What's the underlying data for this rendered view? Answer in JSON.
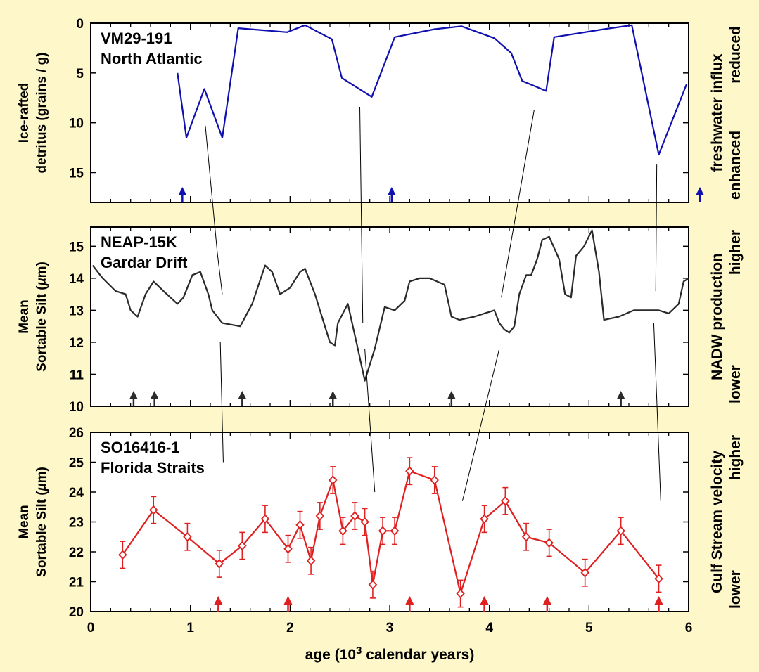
{
  "chart_data": [
    {
      "type": "line",
      "panel": "top",
      "title_lines": [
        "VM29-191",
        "North Atlantic"
      ],
      "ylabel_lines": [
        "Ice-rafted",
        "detritus (grains / g)"
      ],
      "right_label_lines": [
        "freshwater influx",
        "enhanced",
        "reduced"
      ],
      "ylim": [
        18,
        0
      ],
      "y_ticks": [
        0,
        5,
        10,
        15
      ],
      "y_tick_labels": [
        "0",
        "5",
        "10",
        "15"
      ],
      "color": "#1010B0",
      "x": [
        0.87,
        0.96,
        1.14,
        1.32,
        1.48,
        1.97,
        2.15,
        2.42,
        2.52,
        2.82,
        3.05,
        3.45,
        3.72,
        4.05,
        4.22,
        4.33,
        4.57,
        4.65,
        5.15,
        5.43,
        5.7,
        5.98
      ],
      "y": [
        5.0,
        11.5,
        6.6,
        11.5,
        0.5,
        0.9,
        0.2,
        1.6,
        5.5,
        7.4,
        1.4,
        0.6,
        0.3,
        1.5,
        3.0,
        5.8,
        6.8,
        1.4,
        0.6,
        0.2,
        13.2,
        6.1
      ],
      "markers_x": [
        0.92,
        3.02,
        6.1
      ]
    },
    {
      "type": "line",
      "panel": "middle",
      "title_lines": [
        "NEAP-15K",
        "Gardar Drift"
      ],
      "ylabel_lines": [
        "Mean",
        "Sortable Silt (µm)"
      ],
      "right_label_lines": [
        "NADW production",
        "lower",
        "higher"
      ],
      "ylim": [
        10,
        15.6
      ],
      "y_ticks": [
        10,
        11,
        12,
        13,
        14,
        15
      ],
      "y_tick_labels": [
        "10",
        "11",
        "12",
        "13",
        "14",
        "15"
      ],
      "color": "#2A2A2A",
      "x": [
        0.02,
        0.12,
        0.25,
        0.35,
        0.4,
        0.47,
        0.55,
        0.63,
        0.73,
        0.8,
        0.87,
        0.93,
        1.02,
        1.1,
        1.18,
        1.22,
        1.32,
        1.5,
        1.62,
        1.75,
        1.82,
        1.9,
        2.0,
        2.1,
        2.15,
        2.25,
        2.35,
        2.4,
        2.45,
        2.48,
        2.53,
        2.58,
        2.68,
        2.75,
        2.85,
        2.95,
        3.05,
        3.15,
        3.2,
        3.3,
        3.4,
        3.55,
        3.62,
        3.7,
        3.85,
        3.95,
        4.05,
        4.1,
        4.15,
        4.2,
        4.25,
        4.3,
        4.37,
        4.42,
        4.48,
        4.53,
        4.6,
        4.7,
        4.76,
        4.82,
        4.87,
        4.95,
        5.03,
        5.1,
        5.15,
        5.3,
        5.45,
        5.55,
        5.7,
        5.8,
        5.9,
        5.95,
        6.0
      ],
      "y": [
        14.4,
        14.0,
        13.6,
        13.5,
        13.0,
        12.8,
        13.5,
        13.9,
        13.6,
        13.4,
        13.2,
        13.4,
        14.1,
        14.2,
        13.5,
        13.0,
        12.6,
        12.5,
        13.2,
        14.4,
        14.2,
        13.5,
        13.7,
        14.2,
        14.3,
        13.5,
        12.5,
        12.0,
        11.9,
        12.6,
        12.9,
        13.2,
        11.8,
        10.8,
        11.8,
        13.1,
        13.0,
        13.3,
        13.9,
        14.0,
        14.0,
        13.8,
        12.8,
        12.7,
        12.8,
        12.9,
        13.0,
        12.6,
        12.4,
        12.3,
        12.5,
        13.5,
        14.1,
        14.1,
        14.6,
        15.2,
        15.3,
        14.6,
        13.5,
        13.4,
        14.7,
        15.0,
        15.5,
        14.2,
        12.7,
        12.8,
        13.0,
        13.0,
        13.0,
        12.9,
        13.2,
        13.9,
        14.0
      ],
      "markers_x": [
        0.43,
        0.64,
        1.52,
        2.43,
        3.62,
        5.32
      ]
    },
    {
      "type": "line",
      "panel": "bottom",
      "title_lines": [
        "SO16416-1",
        "Florida Straits"
      ],
      "ylabel_lines": [
        "Mean",
        "Sortable Silt (µm)"
      ],
      "right_label_lines": [
        "Gulf Stream velocity",
        "lower",
        "higher"
      ],
      "ylim": [
        20,
        26
      ],
      "y_ticks": [
        20,
        21,
        22,
        23,
        24,
        25,
        26
      ],
      "y_tick_labels": [
        "20",
        "21",
        "22",
        "23",
        "24",
        "25",
        "26"
      ],
      "color": "#E02020",
      "x": [
        0.32,
        0.63,
        0.97,
        1.29,
        1.52,
        1.75,
        1.98,
        2.1,
        2.21,
        2.3,
        2.43,
        2.53,
        2.65,
        2.75,
        2.83,
        2.93,
        3.05,
        3.2,
        3.45,
        3.71,
        3.95,
        4.16,
        4.37,
        4.6,
        4.96,
        5.32,
        5.7
      ],
      "y": [
        21.9,
        23.4,
        22.5,
        21.6,
        22.2,
        23.1,
        22.1,
        22.9,
        21.7,
        23.2,
        24.4,
        22.7,
        23.2,
        23.0,
        20.9,
        22.7,
        22.7,
        24.7,
        24.4,
        20.6,
        23.1,
        23.7,
        22.5,
        22.3,
        21.3,
        22.7,
        21.1
      ],
      "err": [
        0.45,
        0.45,
        0.45,
        0.45,
        0.45,
        0.45,
        0.45,
        0.45,
        0.45,
        0.45,
        0.45,
        0.45,
        0.45,
        0.45,
        0.45,
        0.45,
        0.45,
        0.45,
        0.45,
        0.45,
        0.45,
        0.45,
        0.45,
        0.45,
        0.45,
        0.45,
        0.45
      ],
      "markers_x": [
        1.28,
        1.98,
        3.2,
        3.95,
        4.58,
        5.7
      ]
    }
  ],
  "x_axis": {
    "label": "age (10",
    "label_sup": "3",
    "label_end": " calendar years)",
    "xlim": [
      0,
      6
    ],
    "ticks": [
      0,
      1,
      2,
      3,
      4,
      5,
      6
    ],
    "tick_labels": [
      "0",
      "1",
      "2",
      "3",
      "4",
      "5",
      "6"
    ]
  },
  "correlation_lines": [
    {
      "x1": 1.15,
      "y1": 10.3,
      "p1": 0,
      "x2": 1.27,
      "y2": 14.8,
      "p2": 1
    },
    {
      "x1": 1.27,
      "y1": 14.8,
      "p1": 1,
      "x2": 1.32,
      "y2": 13.5,
      "p2": 1
    },
    {
      "x1": 2.7,
      "y1": 8.4,
      "p1": 0,
      "x2": 2.73,
      "y2": 12.6,
      "p2": 1
    },
    {
      "x1": 4.45,
      "y1": 8.7,
      "p1": 0,
      "x2": 4.12,
      "y2": 13.4,
      "p2": 1
    },
    {
      "x1": 5.68,
      "y1": 14.2,
      "p1": 0,
      "x2": 5.67,
      "y2": 13.6,
      "p2": 1
    },
    {
      "x1": 1.3,
      "y1": 12.0,
      "p1": 1,
      "x2": 1.33,
      "y2": 25.0,
      "p2": 2
    },
    {
      "x1": 2.75,
      "y1": 11.8,
      "p1": 1,
      "x2": 2.85,
      "y2": 24.0,
      "p2": 2
    },
    {
      "x1": 4.1,
      "y1": 11.8,
      "p1": 1,
      "x2": 3.73,
      "y2": 23.7,
      "p2": 2
    },
    {
      "x1": 5.65,
      "y1": 12.6,
      "p1": 1,
      "x2": 5.72,
      "y2": 23.7,
      "p2": 2
    }
  ]
}
